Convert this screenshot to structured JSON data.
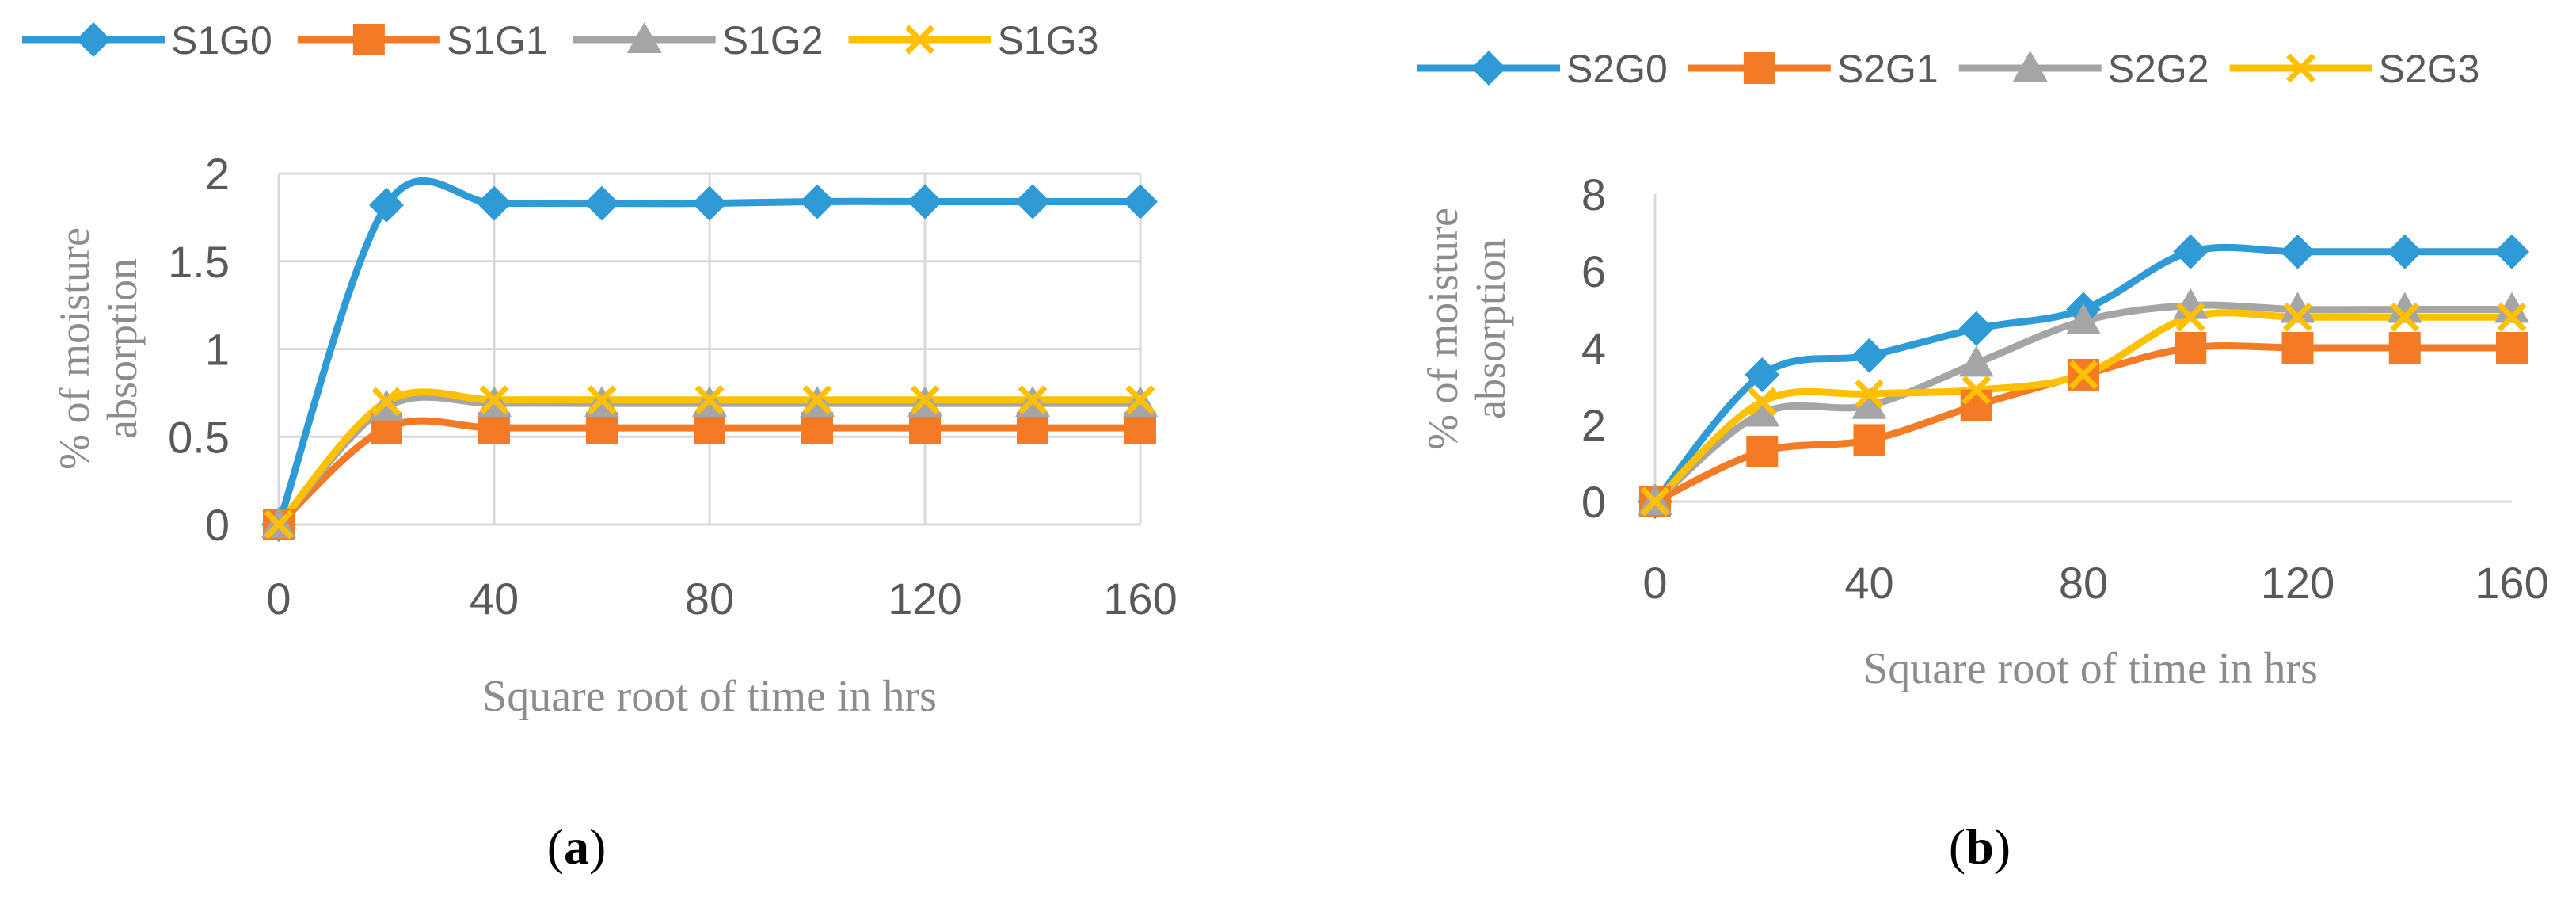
{
  "chart_data": [
    {
      "id": "a",
      "type": "line",
      "panel_label": "a",
      "xlabel": "Square root of time in hrs",
      "ylabel": "% of moisture absorption",
      "xlim": [
        0,
        160
      ],
      "ylim": [
        0,
        2
      ],
      "xticks": [
        0,
        40,
        80,
        120,
        160
      ],
      "yticks": [
        0,
        0.5,
        1,
        1.5,
        2
      ],
      "ytick_labels": [
        "0",
        "0.5",
        "1",
        "1.5",
        "2"
      ],
      "grid": true,
      "legend": "top",
      "x": [
        0,
        20,
        40,
        60,
        80,
        100,
        120,
        140,
        160
      ],
      "series": [
        {
          "name": "S1G0",
          "color": "#2E9BD6",
          "marker": "diamond",
          "values": [
            0,
            1.82,
            1.83,
            1.83,
            1.83,
            1.84,
            1.84,
            1.84,
            1.84
          ]
        },
        {
          "name": "S1G1",
          "color": "#F37B25",
          "marker": "square",
          "values": [
            0,
            0.55,
            0.55,
            0.55,
            0.55,
            0.55,
            0.55,
            0.55,
            0.55
          ]
        },
        {
          "name": "S1G2",
          "color": "#A5A5A5",
          "marker": "triangle",
          "values": [
            0,
            0.67,
            0.69,
            0.69,
            0.69,
            0.69,
            0.69,
            0.69,
            0.69
          ]
        },
        {
          "name": "S1G3",
          "color": "#FFC000",
          "marker": "x",
          "values": [
            0,
            0.7,
            0.71,
            0.71,
            0.71,
            0.71,
            0.71,
            0.71,
            0.71
          ]
        }
      ]
    },
    {
      "id": "b",
      "type": "line",
      "panel_label": "b",
      "xlabel": "Square root of time in hrs",
      "ylabel": "% of moisture absorption",
      "xlim": [
        0,
        160
      ],
      "ylim": [
        0,
        8
      ],
      "xticks": [
        0,
        40,
        80,
        120,
        160
      ],
      "yticks": [
        0,
        2,
        4,
        6,
        8
      ],
      "ytick_labels": [
        "0",
        "2",
        "4",
        "6",
        "8"
      ],
      "grid": false,
      "legend": "top",
      "x": [
        0,
        20,
        40,
        60,
        80,
        100,
        120,
        140,
        160
      ],
      "series": [
        {
          "name": "S2G0",
          "color": "#2E9BD6",
          "marker": "diamond",
          "values": [
            0,
            3.3,
            3.8,
            4.5,
            5.0,
            6.5,
            6.5,
            6.5,
            6.5
          ]
        },
        {
          "name": "S2G1",
          "color": "#F37B25",
          "marker": "square",
          "values": [
            0,
            1.3,
            1.6,
            2.5,
            3.3,
            4.0,
            4.0,
            4.0,
            4.0
          ]
        },
        {
          "name": "S2G2",
          "color": "#A5A5A5",
          "marker": "triangle",
          "values": [
            0,
            2.3,
            2.5,
            3.6,
            4.7,
            5.1,
            5.0,
            5.0,
            5.0
          ]
        },
        {
          "name": "S2G3",
          "color": "#FFC000",
          "marker": "x",
          "values": [
            0,
            2.6,
            2.8,
            2.9,
            3.3,
            4.8,
            4.8,
            4.8,
            4.8
          ]
        }
      ]
    }
  ]
}
